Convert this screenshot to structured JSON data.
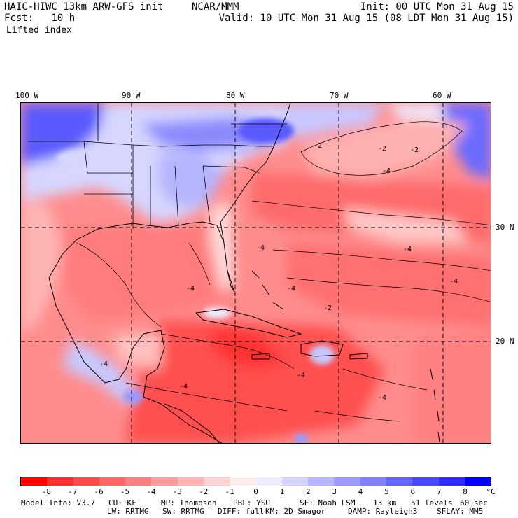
{
  "header": {
    "model": "HAIC-HIWC 13km ARW-GFS init",
    "org": "NCAR/MMM",
    "init": "Init: 00 UTC Mon 31 Aug 15",
    "fcst_label": "Fcst:",
    "fcst_value": "10 h",
    "valid": "Valid: 10 UTC Mon 31 Aug 15 (08 LDT Mon 31 Aug 15)",
    "field": "Lifted index"
  },
  "map": {
    "longitude_labels": [
      "100 W",
      "90 W",
      "80 W",
      "70 W",
      "60 W"
    ],
    "latitude_labels": [
      "30 N",
      "20 N"
    ],
    "contour_labels": [
      "-2",
      "-2",
      "-2",
      "-4",
      "-4",
      "-4",
      "-4",
      "-4",
      "-2",
      "-4",
      "-4",
      "-4",
      "-4",
      "-4"
    ]
  },
  "colorbar": {
    "labels": [
      "-8",
      "-7",
      "-6",
      "-5",
      "-4",
      "-3",
      "-2",
      "-1",
      "0",
      "1",
      "2",
      "3",
      "4",
      "5",
      "6",
      "7",
      "8"
    ],
    "unit": "°C",
    "colors": [
      "#ff0000",
      "#ff2d2d",
      "#ff4a4a",
      "#ff6666",
      "#ff8080",
      "#ff9a9a",
      "#ffb4b4",
      "#ffd2d2",
      "#ffeeee",
      "#eeeeff",
      "#d2d2ff",
      "#b4b4ff",
      "#9a9aff",
      "#8080ff",
      "#6666ff",
      "#4a4aff",
      "#2d2dff",
      "#0000ff"
    ]
  },
  "model_info": {
    "line1": {
      "version": "Model Info: V3.7",
      "cu": "CU: KF",
      "mp": "MP: Thompson",
      "pbl": "PBL: YSU",
      "sf": "SF: Noah LSM",
      "res": "13 km",
      "levels": "51 levels",
      "dt": "60 sec"
    },
    "line2": {
      "lw": "LW: RRTMG",
      "sw": "SW: RRTMG",
      "diff": "DIFF: full",
      "km": "KM: 2D Smagor",
      "damp": "DAMP: Rayleigh3",
      "sflay": "SFLAY: MM5"
    }
  }
}
